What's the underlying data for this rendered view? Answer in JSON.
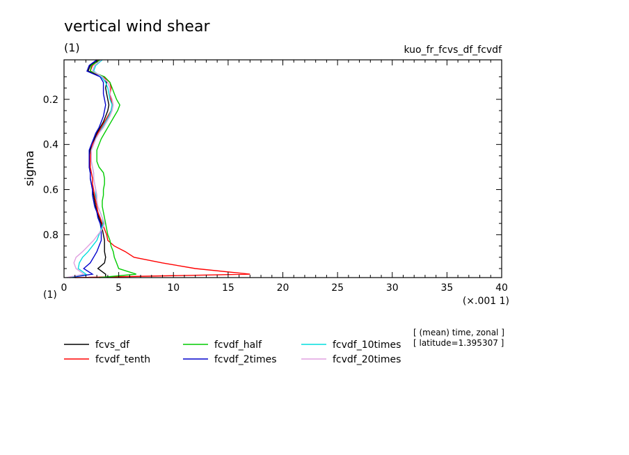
{
  "chart_data": {
    "type": "line",
    "title": "vertical wind shear",
    "title_unit": "(1)",
    "experiment_label": "kuo_fr_fcvs_df_fcvdf",
    "xlabel": "(×.001 1)",
    "ylabel": "sigma",
    "y_unit": "(1)",
    "xlim": [
      0,
      40
    ],
    "ylim": [
      0.99,
      0.025
    ],
    "x_ticks": [
      "0",
      "5",
      "10",
      "15",
      "20",
      "25",
      "30",
      "35",
      "40"
    ],
    "y_ticks": [
      "0.2",
      "0.4",
      "0.6",
      "0.8"
    ],
    "info_lines": [
      "[ (mean) time, zonal ]",
      "[ latitude=1.395307 ]"
    ],
    "grid": false,
    "legend_position": "bottom",
    "sigma": [
      0.025,
      0.05,
      0.075,
      0.1,
      0.125,
      0.15,
      0.175,
      0.2,
      0.225,
      0.25,
      0.275,
      0.3,
      0.325,
      0.35,
      0.375,
      0.4,
      0.425,
      0.45,
      0.475,
      0.5,
      0.525,
      0.55,
      0.575,
      0.6,
      0.625,
      0.65,
      0.675,
      0.7,
      0.725,
      0.75,
      0.775,
      0.8,
      0.825,
      0.85,
      0.875,
      0.9,
      0.925,
      0.95,
      0.975,
      0.99
    ],
    "series": [
      {
        "name": "fcvs_df",
        "color": "#000000",
        "values": [
          3.2,
          2.4,
          2.2,
          3.6,
          3.9,
          3.8,
          3.9,
          4.0,
          4.1,
          4.0,
          3.8,
          3.6,
          3.3,
          3.0,
          2.8,
          2.6,
          2.4,
          2.3,
          2.3,
          2.3,
          2.4,
          2.4,
          2.5,
          2.6,
          2.7,
          2.8,
          2.9,
          3.0,
          3.2,
          3.4,
          3.5,
          3.6,
          3.7,
          3.7,
          3.7,
          3.8,
          3.7,
          3.1,
          3.8,
          3.8
        ]
      },
      {
        "name": "fcvdf_tenth",
        "color": "#ff0000",
        "values": [
          3.2,
          2.6,
          2.4,
          3.6,
          4.2,
          4.3,
          4.2,
          4.3,
          4.4,
          4.3,
          4.0,
          3.7,
          3.4,
          3.1,
          2.9,
          2.6,
          2.5,
          2.4,
          2.4,
          2.4,
          2.5,
          2.6,
          2.6,
          2.7,
          2.8,
          2.9,
          3.0,
          3.1,
          3.3,
          3.5,
          3.7,
          3.9,
          4.0,
          4.6,
          5.6,
          6.4,
          9.0,
          12.0,
          17.0,
          1.0
        ]
      },
      {
        "name": "fcvdf_half",
        "color": "#00cc00",
        "values": [
          3.3,
          2.5,
          2.4,
          3.7,
          4.2,
          4.4,
          4.6,
          4.8,
          5.1,
          4.9,
          4.6,
          4.3,
          4.0,
          3.7,
          3.4,
          3.2,
          3.0,
          3.0,
          3.0,
          3.2,
          3.6,
          3.7,
          3.7,
          3.6,
          3.6,
          3.5,
          3.5,
          3.6,
          3.7,
          3.8,
          3.9,
          4.0,
          4.2,
          4.3,
          4.5,
          4.6,
          4.8,
          5.0,
          6.6,
          3.2
        ]
      },
      {
        "name": "fcvdf_2times",
        "color": "#0000cc",
        "values": [
          3.0,
          2.3,
          2.1,
          3.3,
          3.6,
          3.6,
          3.6,
          3.7,
          3.8,
          3.7,
          3.6,
          3.4,
          3.2,
          2.9,
          2.7,
          2.5,
          2.3,
          2.3,
          2.3,
          2.3,
          2.4,
          2.4,
          2.5,
          2.6,
          2.6,
          2.7,
          2.8,
          3.0,
          3.1,
          3.3,
          3.4,
          3.4,
          3.4,
          3.2,
          3.0,
          2.7,
          2.4,
          1.8,
          2.6,
          0.5
        ]
      },
      {
        "name": "fcvdf_10times",
        "color": "#00dddd",
        "values": [
          3.5,
          2.9,
          2.7,
          3.4,
          3.8,
          4.0,
          4.1,
          4.2,
          4.4,
          4.3,
          4.1,
          3.8,
          3.5,
          3.2,
          2.9,
          2.7,
          2.5,
          2.5,
          2.5,
          2.6,
          2.7,
          2.7,
          2.8,
          2.9,
          2.9,
          3.0,
          3.1,
          3.3,
          3.5,
          3.6,
          3.4,
          3.2,
          3.0,
          2.6,
          2.2,
          1.7,
          1.4,
          1.3,
          2.0,
          0.3
        ]
      },
      {
        "name": "fcvdf_20times",
        "color": "#e0a0e0",
        "values": [
          3.4,
          2.8,
          2.6,
          3.5,
          4.0,
          4.2,
          4.2,
          4.4,
          4.5,
          4.4,
          4.2,
          3.9,
          3.6,
          3.2,
          2.9,
          2.7,
          2.5,
          2.5,
          2.5,
          2.6,
          2.7,
          2.7,
          2.8,
          2.9,
          3.0,
          3.0,
          3.1,
          3.3,
          3.5,
          3.7,
          3.5,
          3.1,
          2.7,
          2.2,
          1.7,
          1.1,
          0.9,
          1.1,
          1.8,
          0.2
        ]
      }
    ]
  }
}
